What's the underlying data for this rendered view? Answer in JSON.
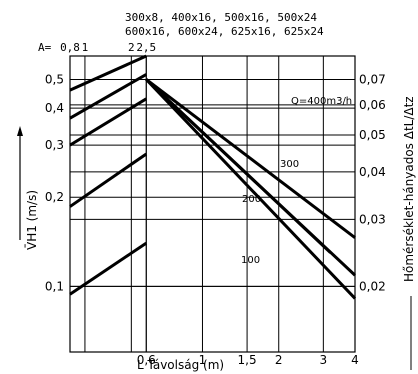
{
  "chart_data": {
    "type": "line",
    "header_line1": "300x8, 400x16, 500x16, 500x24",
    "header_line2": "600x16, 600x24, 625x16, 625x24",
    "a_label": "A=",
    "a_ticks": [
      {
        "value": 0.8,
        "label": "0,8"
      },
      {
        "value": 1,
        "label": "1"
      },
      {
        "value": 2,
        "label": "2"
      },
      {
        "value": 2.5,
        "label": "2,5"
      }
    ],
    "xlabel": "L Távolság (m)",
    "x_ticks": [
      {
        "value": 0.6,
        "label": "0,6"
      },
      {
        "value": 1,
        "label": "1"
      },
      {
        "value": 1.5,
        "label": "1,5"
      },
      {
        "value": 2,
        "label": "2"
      },
      {
        "value": 3,
        "label": "3"
      },
      {
        "value": 4,
        "label": "4"
      }
    ],
    "ylabel_left": "V̄H1 (m/s)",
    "y_ticks_left": [
      {
        "value": 0.1,
        "label": "0,1"
      },
      {
        "value": 0.2,
        "label": "0,2"
      },
      {
        "value": 0.3,
        "label": "0,3"
      },
      {
        "value": 0.4,
        "label": "0,4"
      },
      {
        "value": 0.5,
        "label": "0,5"
      }
    ],
    "ylabel_right": "Hőmérséklet-hányados ΔtL/Δtz",
    "y_ticks_right": [
      {
        "value": 0.02,
        "label": "0,02"
      },
      {
        "value": 0.03,
        "label": "0,03"
      },
      {
        "value": 0.04,
        "label": "0,04"
      },
      {
        "value": 0.05,
        "label": "0,05"
      },
      {
        "value": 0.06,
        "label": "0,06"
      },
      {
        "value": 0.07,
        "label": "0,07"
      }
    ],
    "xlim": [
      0.3,
      4
    ],
    "ylim": [
      0.06,
      0.6
    ],
    "grid": true,
    "curve_label_prefix": "Q=400m3/h",
    "series": [
      {
        "name": "Q=400m3/h",
        "x": [
          0.6,
          4
        ],
        "y": [
          0.5,
          0.091
        ]
      },
      {
        "name": "300",
        "x": [
          0.6,
          4
        ],
        "y": [
          0.5,
          0.109
        ]
      },
      {
        "name": "200",
        "x": [
          0.6,
          4
        ],
        "y": [
          0.5,
          0.146
        ]
      },
      {
        "name": "100",
        "x": [
          0.6,
          3.2
        ],
        "y": [
          0.5,
          0.13
        ]
      }
    ],
    "curve_labels": [
      "Q=400m3/h",
      "300",
      "200",
      "100"
    ],
    "a_lines": [
      {
        "x": [
          0.3,
          0.6
        ],
        "y": [
          0.094,
          0.14
        ]
      },
      {
        "x": [
          0.3,
          0.6
        ],
        "y": [
          0.186,
          0.28
        ]
      },
      {
        "x": [
          0.3,
          0.6
        ],
        "y": [
          0.3,
          0.43
        ]
      },
      {
        "x": [
          0.3,
          0.6
        ],
        "y": [
          0.37,
          0.52
        ]
      },
      {
        "x": [
          0.3,
          0.6
        ],
        "y": [
          0.46,
          0.6
        ]
      }
    ]
  }
}
